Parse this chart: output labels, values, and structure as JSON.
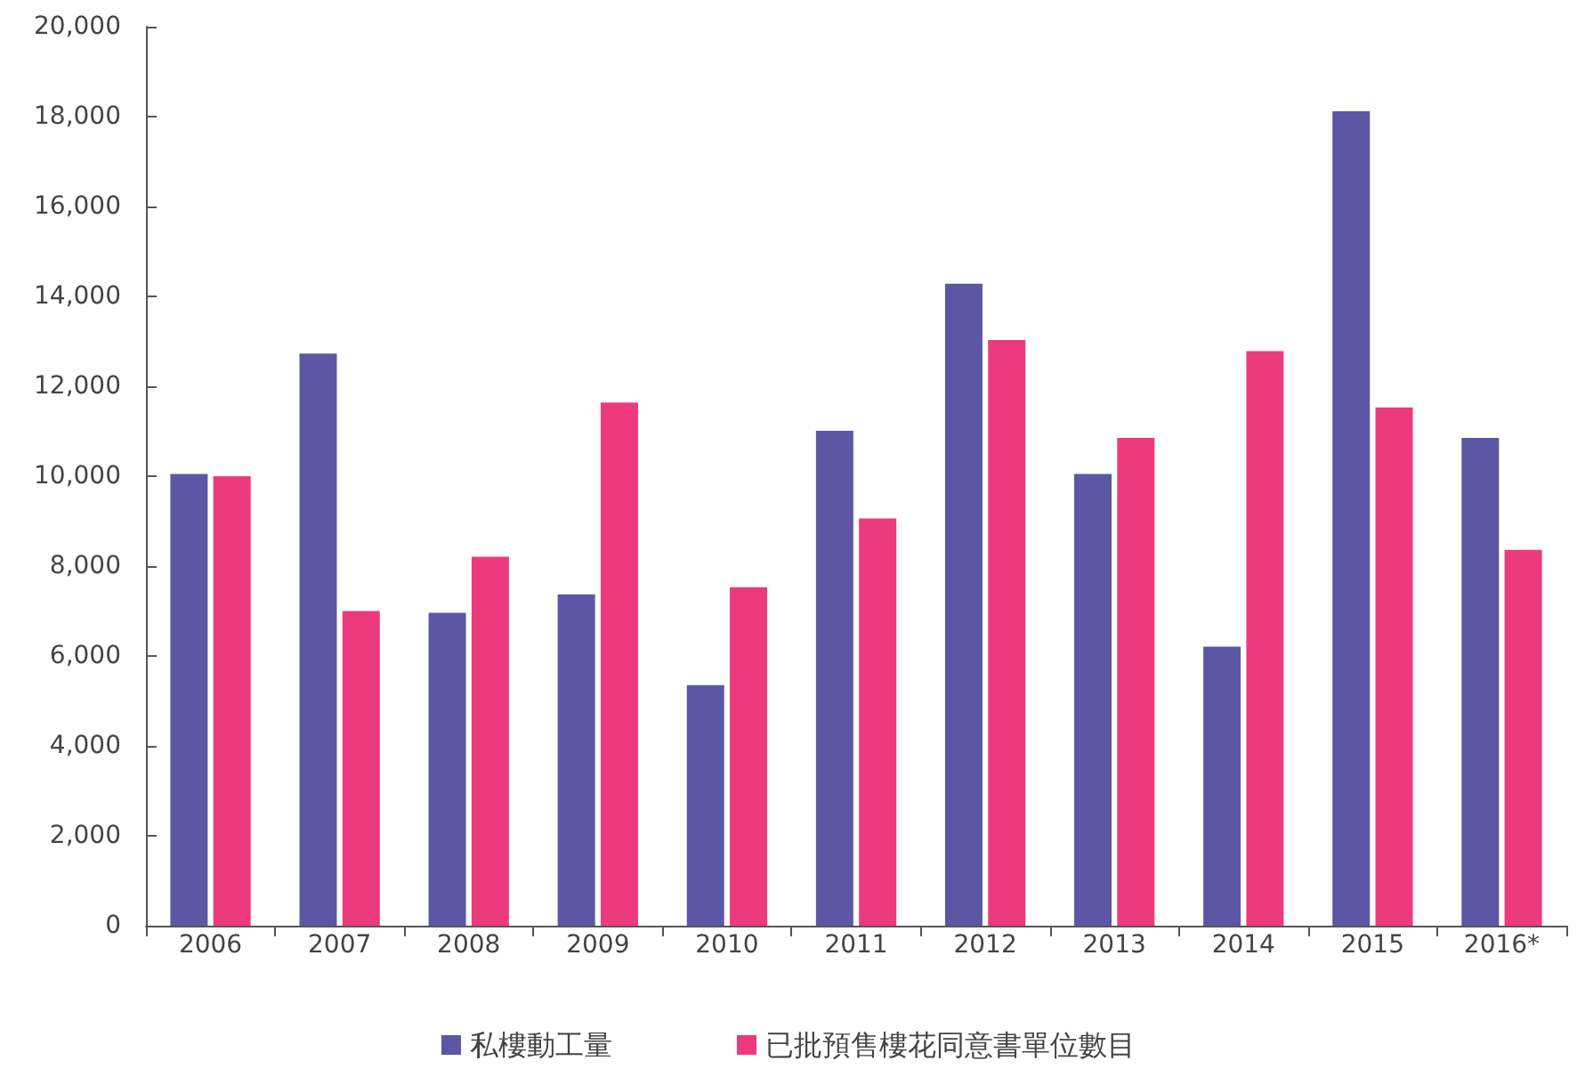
{
  "chart_data": {
    "type": "bar",
    "categories": [
      "2006",
      "2007",
      "2008",
      "2009",
      "2010",
      "2011",
      "2012",
      "2013",
      "2014",
      "2015",
      "2016*"
    ],
    "series": [
      {
        "name": "私樓動工量",
        "color": "#5b57a5",
        "values": [
          10050,
          12730,
          6960,
          7370,
          5350,
          11010,
          14280,
          10050,
          6210,
          18120,
          10850
        ]
      },
      {
        "name": "已批預售樓花同意書單位數目",
        "color": "#ec3a7d",
        "values": [
          10000,
          7000,
          8210,
          11640,
          7530,
          9060,
          13030,
          10850,
          12780,
          11530,
          8360
        ]
      }
    ],
    "ylim": [
      0,
      20000
    ],
    "yticks": [
      0,
      {
        "value": 2000,
        "label": "2,000"
      },
      {
        "value": 4000,
        "label": "4,000"
      },
      {
        "value": 6000,
        "label": "6,000"
      },
      {
        "value": 8000,
        "label": "8,000"
      },
      {
        "value": 10000,
        "label": "10,000"
      },
      {
        "value": 12000,
        "label": "12,000"
      },
      {
        "value": 14000,
        "label": "14,000"
      },
      {
        "value": 16000,
        "label": "16,000"
      },
      {
        "value": 18000,
        "label": "18,000"
      },
      {
        "value": 20000,
        "label": "20,000"
      }
    ],
    "grid": false,
    "legend": "bottom"
  }
}
